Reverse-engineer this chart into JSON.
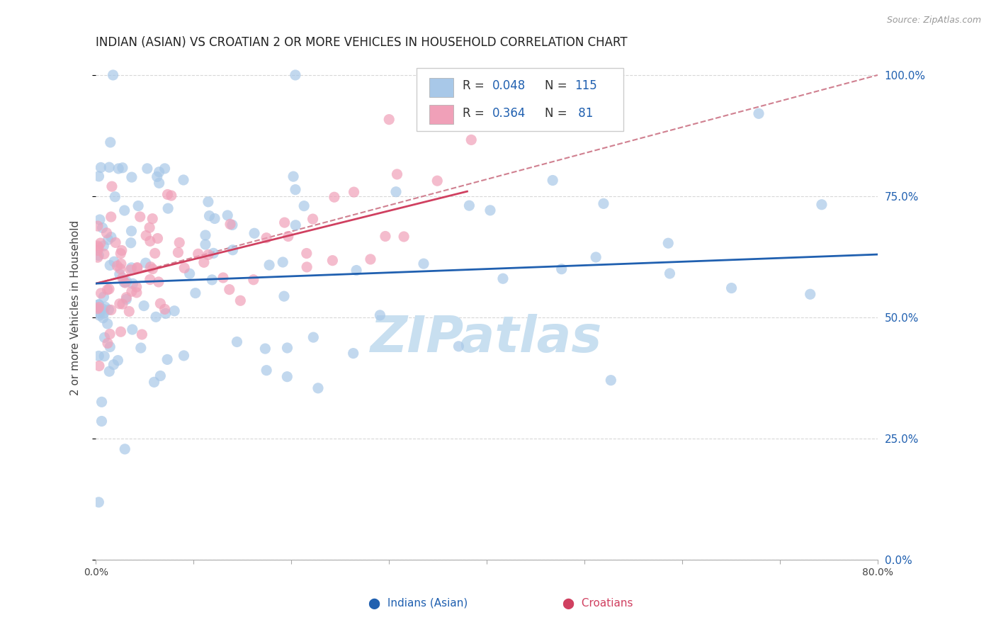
{
  "title": "INDIAN (ASIAN) VS CROATIAN 2 OR MORE VEHICLES IN HOUSEHOLD CORRELATION CHART",
  "source": "Source: ZipAtlas.com",
  "ylabel": "2 or more Vehicles in Household",
  "xlim": [
    0.0,
    80.0
  ],
  "ylim": [
    0.0,
    104.0
  ],
  "yticks": [
    0.0,
    25.0,
    50.0,
    75.0,
    100.0
  ],
  "ytick_labels": [
    "0.0%",
    "25.0%",
    "50.0%",
    "75.0%",
    "100.0%"
  ],
  "xticks": [
    0.0,
    10.0,
    20.0,
    30.0,
    40.0,
    50.0,
    60.0,
    70.0,
    80.0
  ],
  "blue_R": 0.048,
  "blue_N": 115,
  "pink_R": 0.364,
  "pink_N": 81,
  "blue_color": "#a8c8e8",
  "pink_color": "#f0a0b8",
  "blue_line_color": "#2060b0",
  "pink_line_color": "#d04060",
  "trendline_dash_color": "#d08090",
  "legend_text_color": "#2060b0",
  "watermark": "ZIPatlas",
  "watermark_color": "#c8dff0",
  "blue_trend_x0": 0.0,
  "blue_trend_x1": 80.0,
  "blue_trend_y0": 57.0,
  "blue_trend_y1": 63.0,
  "pink_trend_x0": 0.0,
  "pink_trend_x1": 38.0,
  "pink_trend_y0": 57.0,
  "pink_trend_y1": 76.0,
  "dash_trend_x0": 0.0,
  "dash_trend_x1": 80.0,
  "dash_trend_y0": 57.0,
  "dash_trend_y1": 100.0,
  "background_color": "#ffffff",
  "grid_color": "#d8d8d8"
}
